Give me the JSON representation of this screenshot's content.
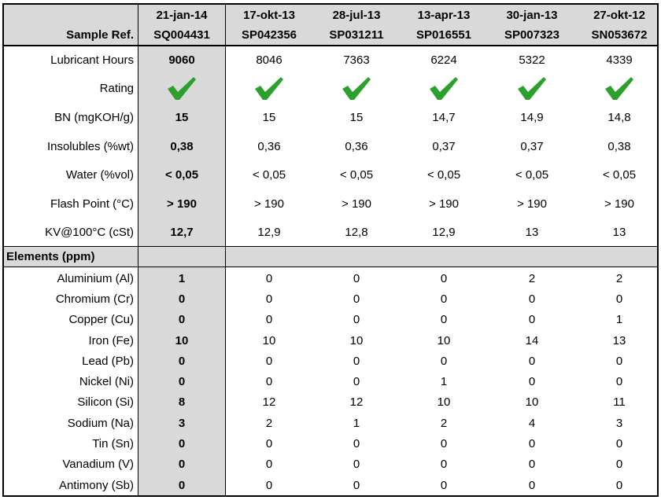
{
  "header": {
    "label": "Sample Ref.",
    "columns": [
      {
        "date": "21-jan-14",
        "ref": "SQ004431"
      },
      {
        "date": "17-okt-13",
        "ref": "SP042356"
      },
      {
        "date": "28-jul-13",
        "ref": "SP031211"
      },
      {
        "date": "13-apr-13",
        "ref": "SP016551"
      },
      {
        "date": "30-jan-13",
        "ref": "SP007323"
      },
      {
        "date": "27-okt-12",
        "ref": "SN053672"
      }
    ]
  },
  "properties": [
    {
      "label": "Lubricant Hours",
      "values": [
        "9060",
        "8046",
        "7363",
        "6224",
        "5322",
        "4339"
      ]
    },
    {
      "label": "Rating",
      "values": [
        "check-icon",
        "check-icon",
        "check-icon",
        "check-icon",
        "check-icon",
        "check-icon"
      ]
    },
    {
      "label": "BN (mgKOH/g)",
      "values": [
        "15",
        "15",
        "15",
        "14,7",
        "14,9",
        "14,8"
      ]
    },
    {
      "label": "Insolubles (%wt)",
      "values": [
        "0,38",
        "0,36",
        "0,36",
        "0,37",
        "0,37",
        "0,38"
      ]
    },
    {
      "label": "Water (%vol)",
      "values": [
        "< 0,05",
        "< 0,05",
        "< 0,05",
        "< 0,05",
        "< 0,05",
        "< 0,05"
      ]
    },
    {
      "label": "Flash Point (°C)",
      "values": [
        "> 190",
        "> 190",
        "> 190",
        "> 190",
        "> 190",
        "> 190"
      ]
    },
    {
      "label": "KV@100°C (cSt)",
      "values": [
        "12,7",
        "12,9",
        "12,8",
        "12,9",
        "13",
        "13"
      ]
    }
  ],
  "elements_heading": "Elements (ppm)",
  "elements": [
    {
      "label": "Aluminium (Al)",
      "values": [
        "1",
        "0",
        "0",
        "0",
        "2",
        "2"
      ]
    },
    {
      "label": "Chromium (Cr)",
      "values": [
        "0",
        "0",
        "0",
        "0",
        "0",
        "0"
      ]
    },
    {
      "label": "Copper (Cu)",
      "values": [
        "0",
        "0",
        "0",
        "0",
        "0",
        "1"
      ]
    },
    {
      "label": "Iron (Fe)",
      "values": [
        "10",
        "10",
        "10",
        "10",
        "14",
        "13"
      ]
    },
    {
      "label": "Lead (Pb)",
      "values": [
        "0",
        "0",
        "0",
        "0",
        "0",
        "0"
      ]
    },
    {
      "label": "Nickel (Ni)",
      "values": [
        "0",
        "0",
        "0",
        "1",
        "0",
        "0"
      ]
    },
    {
      "label": "Silicon (Si)",
      "values": [
        "8",
        "12",
        "12",
        "10",
        "10",
        "11"
      ]
    },
    {
      "label": "Sodium (Na)",
      "values": [
        "3",
        "2",
        "1",
        "2",
        "4",
        "3"
      ]
    },
    {
      "label": "Tin (Sn)",
      "values": [
        "0",
        "0",
        "0",
        "0",
        "0",
        "0"
      ]
    },
    {
      "label": "Vanadium (V)",
      "values": [
        "0",
        "0",
        "0",
        "0",
        "0",
        "0"
      ]
    },
    {
      "label": "Antimony (Sb)",
      "values": [
        "0",
        "0",
        "0",
        "0",
        "0",
        "0"
      ]
    }
  ],
  "colors": {
    "check": "#2ca02c",
    "shade": "#d9d9d9",
    "grid": "#000000"
  }
}
